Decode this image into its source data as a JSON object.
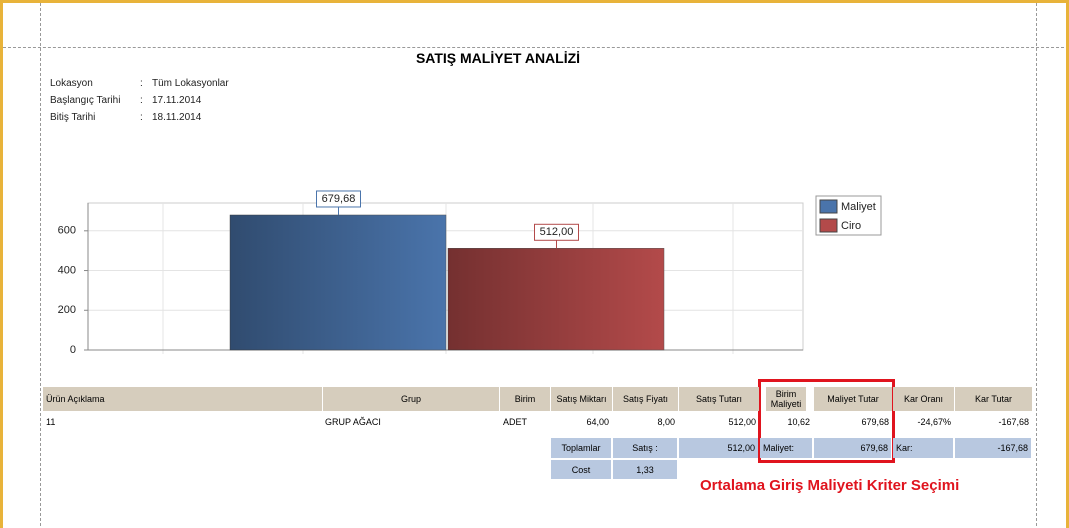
{
  "header": {
    "title": "SATIŞ MALİYET ANALİZİ"
  },
  "info": {
    "separator": ":",
    "rows": [
      {
        "label": "Lokasyon",
        "value": "Tüm Lokasyonlar"
      },
      {
        "label": "Başlangıç Tarihi",
        "value": "17.11.2014"
      },
      {
        "label": "Bitiş Tarihi",
        "value": "18.11.2014"
      }
    ]
  },
  "chart_data": {
    "type": "bar",
    "categories": [
      null
    ],
    "series": [
      {
        "name": "Maliyet",
        "color": "#4a74ab",
        "values": [
          679.68
        ],
        "value_labels": [
          "679,68"
        ]
      },
      {
        "name": "Ciro",
        "color": "#b34a4a",
        "values": [
          512
        ],
        "value_labels": [
          "512,00"
        ]
      }
    ],
    "ylim": [
      0,
      740
    ],
    "yticks": [
      0,
      200,
      400,
      600
    ],
    "grid": true,
    "legend": "right"
  },
  "table": {
    "headers": [
      "Ürün Açıklama",
      "Grup",
      "Birim",
      "Satış Miktarı",
      "Satış Fiyatı",
      "Satış Tutarı",
      "Birim Maliyeti",
      "Maliyet Tutar",
      "Kar Oranı",
      "Kar Tutar"
    ],
    "rows": [
      [
        "11",
        "GRUP AĞACI",
        "ADET",
        "64,00",
        "8,00",
        "512,00",
        "10,62",
        "679,68",
        "-24,67%",
        "-167,68"
      ]
    ],
    "totals": [
      "Toplamlar",
      "Satış :",
      "512,00",
      "Maliyet:",
      "679,68",
      "Kar:",
      "-167,68"
    ],
    "cost": [
      "Cost",
      "1,33"
    ]
  },
  "annotation": "Ortalama Giriş Maliyeti Kriter Seçimi"
}
